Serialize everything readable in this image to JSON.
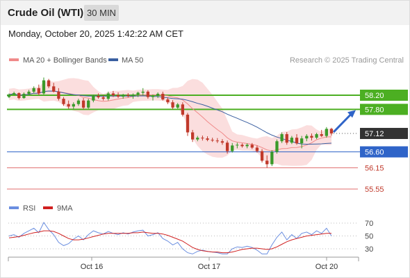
{
  "header": {
    "title": "Crude Oil (WTI)",
    "timeframe": "30 MIN",
    "timestamp": "Monday, October 20, 2025 1:42:22 AM CET"
  },
  "legend": {
    "bb_label": "MA 20 + Bollinger Bands",
    "ma50_label": "MA 50",
    "credit": "Research © 2025 Trading Central",
    "rsi_label": "RSI",
    "rsi_ma_label": "9MA"
  },
  "colors": {
    "up": "#3a9a2a",
    "down": "#c0392b",
    "ma20": "#f08a8a",
    "band_fill": "#fbdede",
    "ma50": "#3a5fa0",
    "green_level": "#4caf22",
    "blue_level": "#2f64c8",
    "red_level": "#e06c6c",
    "last_price": "#333333",
    "arrow": "#2f64c8",
    "rsi": "#6a8ee0",
    "rsi_ma": "#d02020"
  },
  "chart_data": {
    "type": "candlestick",
    "ylim": [
      55.4,
      58.7
    ],
    "x_tick_labels": [
      "Oct 16",
      "Oct 17",
      "Oct 20"
    ],
    "price_levels": [
      {
        "value": 58.2,
        "label": "58.20",
        "kind": "resistance"
      },
      {
        "value": 57.8,
        "label": "57.80",
        "kind": "resistance"
      },
      {
        "value": 57.12,
        "label": "57.12",
        "kind": "last"
      },
      {
        "value": 56.6,
        "label": "56.60",
        "kind": "pivot"
      },
      {
        "value": 56.15,
        "label": "56.15",
        "kind": "support"
      },
      {
        "value": 55.55,
        "label": "55.55",
        "kind": "support"
      }
    ],
    "candles": [
      [
        58.15,
        58.25,
        58.12,
        58.22
      ],
      [
        58.22,
        58.3,
        58.2,
        58.26
      ],
      [
        58.26,
        58.28,
        58.08,
        58.12
      ],
      [
        58.12,
        58.28,
        58.1,
        58.24
      ],
      [
        58.24,
        58.35,
        58.2,
        58.3
      ],
      [
        58.3,
        58.45,
        58.25,
        58.4
      ],
      [
        58.4,
        58.5,
        58.2,
        58.25
      ],
      [
        58.25,
        58.7,
        58.22,
        58.62
      ],
      [
        58.62,
        58.66,
        58.4,
        58.45
      ],
      [
        58.45,
        58.55,
        58.28,
        58.3
      ],
      [
        58.3,
        58.4,
        58.05,
        58.1
      ],
      [
        58.1,
        58.15,
        57.9,
        57.95
      ],
      [
        57.95,
        58.05,
        57.82,
        57.88
      ],
      [
        57.88,
        58.0,
        57.8,
        57.95
      ],
      [
        57.95,
        58.1,
        57.9,
        58.05
      ],
      [
        58.05,
        58.12,
        57.8,
        57.85
      ],
      [
        57.85,
        58.1,
        57.82,
        58.05
      ],
      [
        58.05,
        58.22,
        58.0,
        58.18
      ],
      [
        58.18,
        58.25,
        58.1,
        58.14
      ],
      [
        58.14,
        58.2,
        58.05,
        58.1
      ],
      [
        58.1,
        58.3,
        58.05,
        58.25
      ],
      [
        58.25,
        58.32,
        58.15,
        58.2
      ],
      [
        58.2,
        58.28,
        58.12,
        58.16
      ],
      [
        58.16,
        58.24,
        58.1,
        58.21
      ],
      [
        58.21,
        58.26,
        58.14,
        58.18
      ],
      [
        58.18,
        58.25,
        58.1,
        58.22
      ],
      [
        58.22,
        58.3,
        58.15,
        58.27
      ],
      [
        58.27,
        58.4,
        58.2,
        58.3
      ],
      [
        58.3,
        58.34,
        58.1,
        58.15
      ],
      [
        58.15,
        58.22,
        58.05,
        58.18
      ],
      [
        58.18,
        58.28,
        58.12,
        58.24
      ],
      [
        58.24,
        58.3,
        58.05,
        58.08
      ],
      [
        58.08,
        58.14,
        57.95,
        58.0
      ],
      [
        58.0,
        58.06,
        57.8,
        57.85
      ],
      [
        57.85,
        57.98,
        57.82,
        57.94
      ],
      [
        57.94,
        58.0,
        57.6,
        57.65
      ],
      [
        57.65,
        57.7,
        57.05,
        57.15
      ],
      [
        57.15,
        57.22,
        56.88,
        56.95
      ],
      [
        56.95,
        57.05,
        56.9,
        57.0
      ],
      [
        57.0,
        57.06,
        56.92,
        56.98
      ],
      [
        56.98,
        57.04,
        56.9,
        56.94
      ],
      [
        56.94,
        57.0,
        56.88,
        56.92
      ],
      [
        56.92,
        56.99,
        56.85,
        56.9
      ],
      [
        56.9,
        56.96,
        56.8,
        56.86
      ],
      [
        56.86,
        56.92,
        56.55,
        56.62
      ],
      [
        56.62,
        56.85,
        56.58,
        56.78
      ],
      [
        56.78,
        56.86,
        56.7,
        56.8
      ],
      [
        56.8,
        56.84,
        56.72,
        56.76
      ],
      [
        56.76,
        56.84,
        56.7,
        56.8
      ],
      [
        56.8,
        56.85,
        56.68,
        56.72
      ],
      [
        56.72,
        56.78,
        56.58,
        56.62
      ],
      [
        56.62,
        56.68,
        56.3,
        56.35
      ],
      [
        56.35,
        56.5,
        56.15,
        56.25
      ],
      [
        56.25,
        56.65,
        56.2,
        56.6
      ],
      [
        56.6,
        56.95,
        56.55,
        56.9
      ],
      [
        56.9,
        57.15,
        56.85,
        57.1
      ],
      [
        57.1,
        57.16,
        56.8,
        56.86
      ],
      [
        56.86,
        57.05,
        56.82,
        57.0
      ],
      [
        57.0,
        57.1,
        56.8,
        56.84
      ],
      [
        56.84,
        57.05,
        56.7,
        56.98
      ],
      [
        56.98,
        57.1,
        56.9,
        57.05
      ],
      [
        57.05,
        57.12,
        56.92,
        57.0
      ],
      [
        57.0,
        57.14,
        56.96,
        57.1
      ],
      [
        57.1,
        57.22,
        57.02,
        57.05
      ],
      [
        57.05,
        57.3,
        57.0,
        57.25
      ],
      [
        57.25,
        57.28,
        57.06,
        57.12
      ]
    ],
    "rsi": {
      "scale_ticks": [
        70,
        50,
        30
      ],
      "rsi_values": [
        50,
        52,
        48,
        54,
        58,
        62,
        55,
        71,
        60,
        52,
        40,
        35,
        38,
        45,
        50,
        44,
        52,
        58,
        55,
        53,
        57,
        54,
        52,
        55,
        53,
        56,
        58,
        59,
        50,
        52,
        55,
        46,
        42,
        36,
        40,
        30,
        24,
        22,
        26,
        28,
        26,
        25,
        24,
        22,
        22,
        30,
        33,
        32,
        34,
        32,
        28,
        22,
        22,
        36,
        48,
        56,
        44,
        52,
        46,
        54,
        56,
        52,
        58,
        54,
        62,
        50
      ],
      "ma_values": [
        47,
        48,
        49,
        51,
        53,
        55,
        56,
        58,
        58,
        57,
        54,
        50,
        46,
        44,
        44,
        45,
        47,
        49,
        51,
        53,
        54,
        54,
        54,
        54,
        54,
        55,
        55,
        56,
        55,
        54,
        54,
        53,
        51,
        48,
        45,
        42,
        37,
        32,
        29,
        27,
        26,
        25,
        25,
        24,
        24,
        25,
        27,
        29,
        30,
        31,
        31,
        30,
        29,
        30,
        33,
        37,
        41,
        44,
        46,
        48,
        50,
        51,
        52,
        53,
        54,
        54
      ]
    }
  }
}
